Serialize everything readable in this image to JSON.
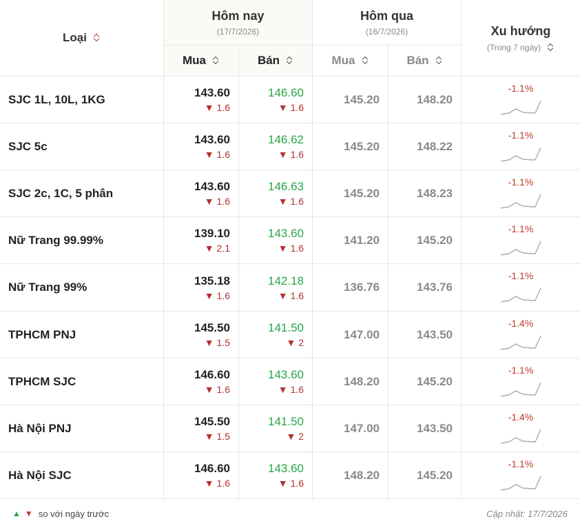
{
  "header": {
    "type_label": "Loại",
    "today_label": "Hôm nay",
    "today_date": "(17/7/2026)",
    "yesterday_label": "Hôm qua",
    "yesterday_date": "(16/7/2026)",
    "buy_label": "Mua",
    "sell_label": "Bán",
    "trend_label": "Xu hướng",
    "trend_sub": "(Trong 7 ngày)"
  },
  "rows": [
    {
      "name": "SJC 1L, 10L, 1KG",
      "buy": "143.60",
      "buy_delta": "▼ 1.6",
      "sell": "146.60",
      "sell_delta": "▼ 1.6",
      "y_buy": "145.20",
      "y_sell": "148.20",
      "trend": "-1.1%"
    },
    {
      "name": "SJC 5c",
      "buy": "143.60",
      "buy_delta": "▼ 1.6",
      "sell": "146.62",
      "sell_delta": "▼ 1.6",
      "y_buy": "145.20",
      "y_sell": "148.22",
      "trend": "-1.1%"
    },
    {
      "name": "SJC 2c, 1C, 5 phân",
      "buy": "143.60",
      "buy_delta": "▼ 1.6",
      "sell": "146.63",
      "sell_delta": "▼ 1.6",
      "y_buy": "145.20",
      "y_sell": "148.23",
      "trend": "-1.1%"
    },
    {
      "name": "Nữ Trang 99.99%",
      "buy": "139.10",
      "buy_delta": "▼ 2.1",
      "sell": "143.60",
      "sell_delta": "▼ 1.6",
      "y_buy": "141.20",
      "y_sell": "145.20",
      "trend": "-1.1%"
    },
    {
      "name": "Nữ Trang 99%",
      "buy": "135.18",
      "buy_delta": "▼ 1.6",
      "sell": "142.18",
      "sell_delta": "▼ 1.6",
      "y_buy": "136.76",
      "y_sell": "143.76",
      "trend": "-1.1%"
    },
    {
      "name": "TPHCM PNJ",
      "buy": "145.50",
      "buy_delta": "▼ 1.5",
      "sell": "141.50",
      "sell_delta": "▼ 2",
      "y_buy": "147.00",
      "y_sell": "143.50",
      "trend": "-1.4%"
    },
    {
      "name": "TPHCM SJC",
      "buy": "146.60",
      "buy_delta": "▼ 1.6",
      "sell": "143.60",
      "sell_delta": "▼ 1.6",
      "y_buy": "148.20",
      "y_sell": "145.20",
      "trend": "-1.1%"
    },
    {
      "name": "Hà Nội PNJ",
      "buy": "145.50",
      "buy_delta": "▼ 1.5",
      "sell": "141.50",
      "sell_delta": "▼ 2",
      "y_buy": "147.00",
      "y_sell": "143.50",
      "trend": "-1.4%"
    },
    {
      "name": "Hà Nội SJC",
      "buy": "146.60",
      "buy_delta": "▼ 1.6",
      "sell": "143.60",
      "sell_delta": "▼ 1.6",
      "y_buy": "148.20",
      "y_sell": "145.20",
      "trend": "-1.1%"
    }
  ],
  "footer": {
    "up_arrow": "▲",
    "down_arrow": "▼",
    "legend_text": "so với ngày trước",
    "updated": "Cập nhật: 17/7/2026"
  },
  "colors": {
    "up": "#27a64a",
    "down": "#c0392b",
    "sparkline": "#aaaaaa"
  },
  "icons": {
    "sort": "sort-updown-icon",
    "sparkline": "sparkline-icon"
  }
}
